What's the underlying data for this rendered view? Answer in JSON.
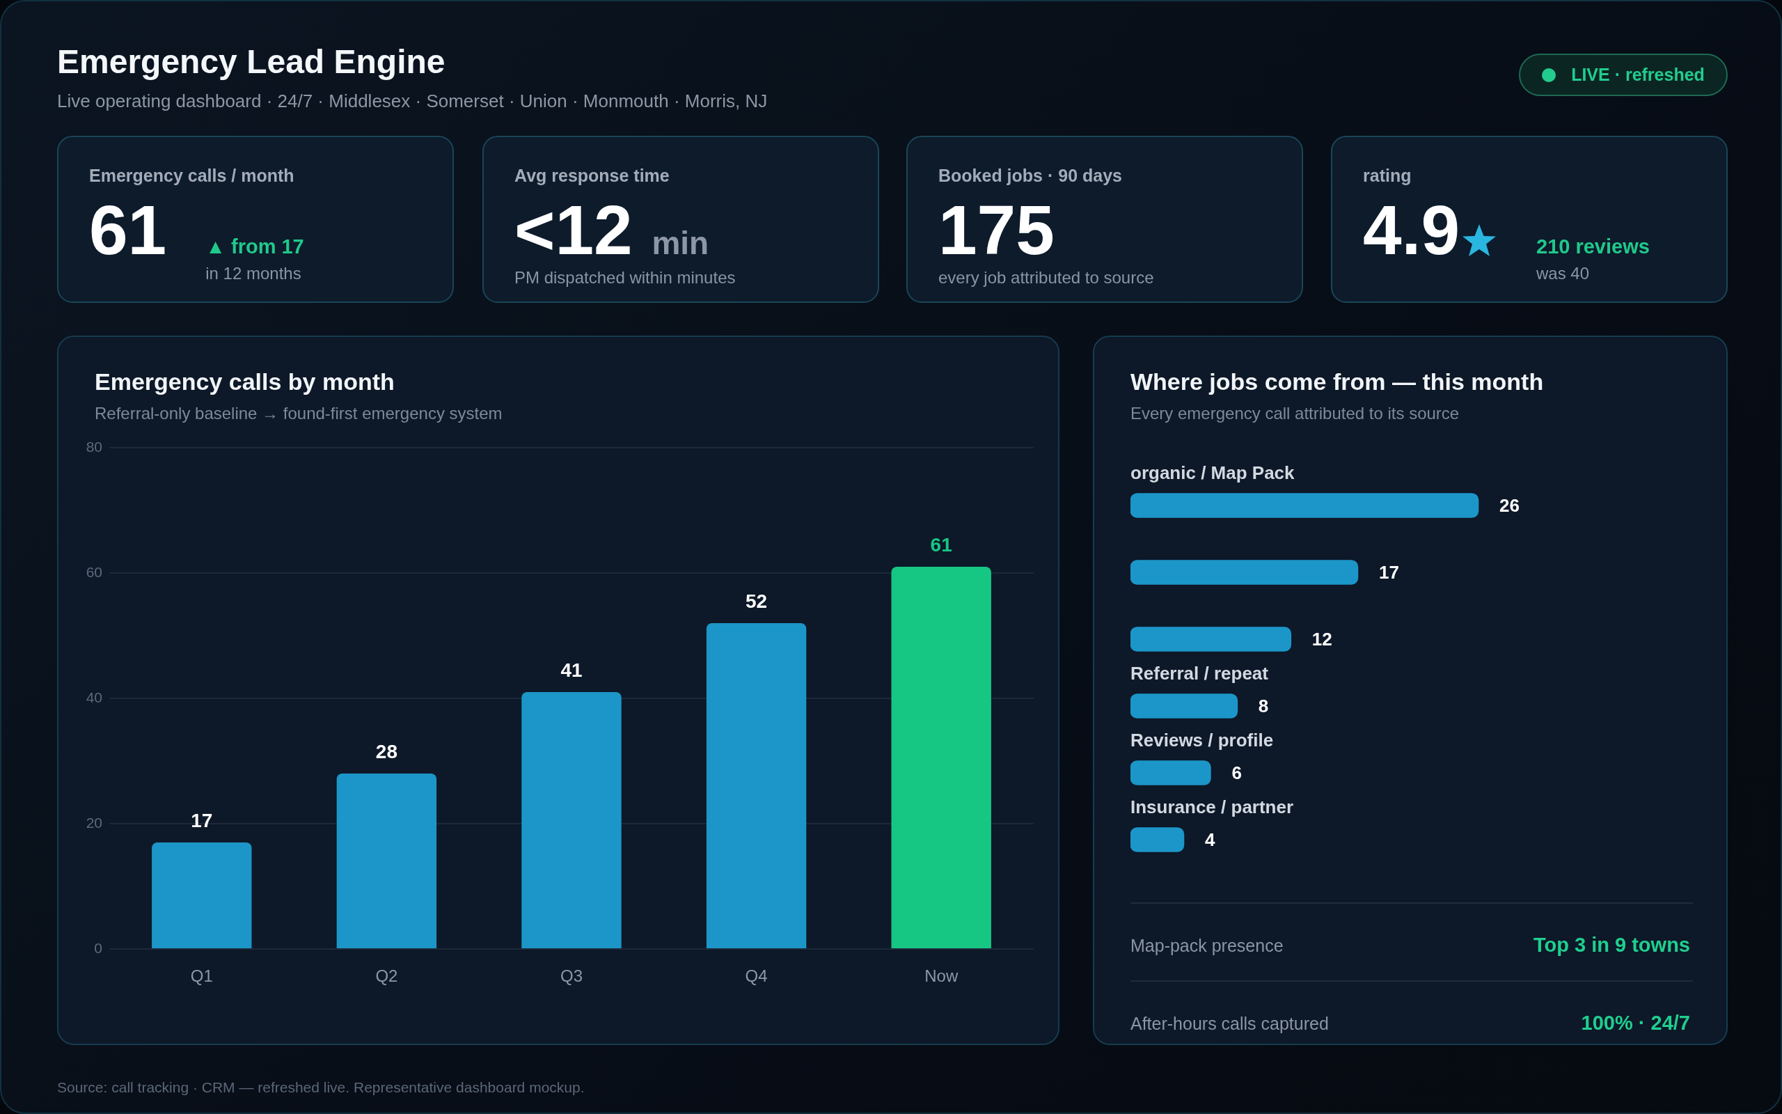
{
  "chart_data": [
    {
      "type": "other",
      "title": "Emergency Lead Engine",
      "subtitle": "Live operating dashboard · 24/7 · Middlesex · Somerset · Union · Monmouth · Morris, NJ",
      "annotations": [
        "LIVE · refreshed",
        "Source: call tracking · CRM — refreshed live. Representative dashboard mockup."
      ]
    },
    {
      "type": "other",
      "title": "Emergency calls / month",
      "annotations": [
        "61",
        "▲ from 17",
        "in 12 months"
      ]
    },
    {
      "type": "other",
      "title": "Avg response time",
      "annotations": [
        "<12 min",
        "PM dispatched within minutes"
      ]
    },
    {
      "type": "other",
      "title": "Booked jobs · 90 days",
      "annotations": [
        "175",
        "every job attributed to source"
      ]
    },
    {
      "type": "other",
      "title": "rating",
      "annotations": [
        "4.9",
        "210 reviews",
        "was 40"
      ]
    },
    {
      "type": "bar",
      "title": "Emergency calls by month",
      "subtitle": "Referral-only baseline → found-first emergency system",
      "categories": [
        "Q1",
        "Q2",
        "Q3",
        "Q4",
        "Now"
      ],
      "values": [
        17,
        28,
        41,
        52,
        61
      ],
      "colors": [
        "#1c96c8",
        "#1c96c8",
        "#1c96c8",
        "#1c96c8",
        "#16c784"
      ],
      "ylim": [
        0,
        80
      ],
      "yticks": [
        0,
        20,
        40,
        60,
        80
      ],
      "grid": "y",
      "data_labels": true
    },
    {
      "type": "bar",
      "orientation": "horizontal",
      "title": "Where jobs come from — this month",
      "subtitle": "Every emergency call attributed to its source",
      "categories": [
        "organic / Map Pack",
        null,
        null,
        "Referral / repeat",
        "Reviews / profile",
        "Insurance / partner"
      ],
      "values": [
        26,
        17,
        12,
        8,
        6,
        4
      ],
      "color": "#1c96c8",
      "data_labels": true,
      "annotations": [
        "Map-pack presence",
        "Top 3 in 9 towns",
        "After-hours calls captured",
        "100% · 24/7"
      ]
    }
  ]
}
